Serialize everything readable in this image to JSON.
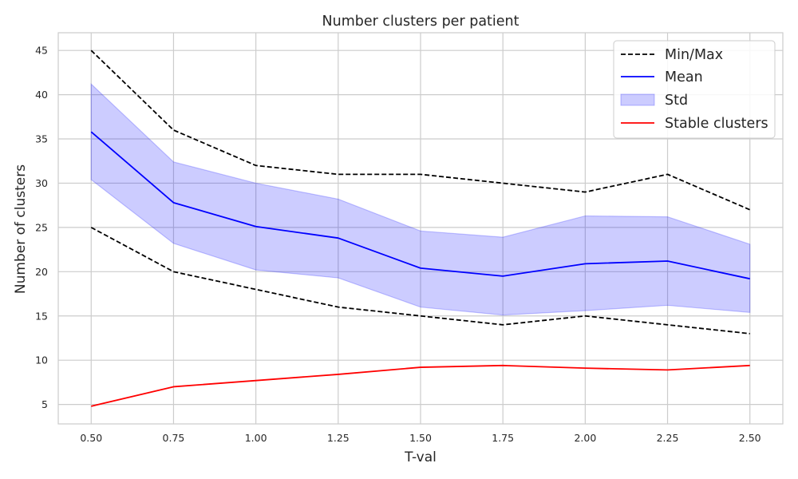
{
  "chart_data": {
    "type": "line",
    "title": "Number clusters per patient",
    "xlabel": "T-val",
    "ylabel": "Number of clusters",
    "x": [
      0.5,
      0.75,
      1.0,
      1.25,
      1.5,
      1.75,
      2.0,
      2.25,
      2.5
    ],
    "x_tick_labels": [
      "0.50",
      "0.75",
      "1.00",
      "1.25",
      "1.50",
      "1.75",
      "2.00",
      "2.25",
      "2.50"
    ],
    "y_ticks": [
      5,
      10,
      15,
      20,
      25,
      30,
      35,
      40,
      45
    ],
    "y_tick_labels": [
      "5",
      "10",
      "15",
      "20",
      "25",
      "30",
      "35",
      "40",
      "45"
    ],
    "xlim": [
      0.4,
      2.6
    ],
    "ylim": [
      2.8,
      47.0
    ],
    "grid": true,
    "legend_position": "top-right",
    "series": [
      {
        "name": "Min/Max",
        "style": "dashed",
        "color": "#000000",
        "values": [
          45,
          36,
          32,
          31,
          31,
          30,
          29,
          31,
          27
        ]
      },
      {
        "name": "Min/Max",
        "style": "dashed",
        "color": "#000000",
        "values": [
          25,
          20,
          18,
          16,
          15,
          14,
          15,
          14,
          13
        ],
        "in_legend": false
      },
      {
        "name": "Mean",
        "style": "solid",
        "color": "#0000ff",
        "values": [
          35.8,
          27.8,
          25.1,
          23.8,
          20.4,
          19.5,
          20.9,
          21.2,
          19.2
        ]
      },
      {
        "name": "Std",
        "style": "band",
        "color": "#0000ff",
        "lower": [
          30.4,
          23.2,
          20.2,
          19.3,
          16.0,
          15.1,
          15.6,
          16.2,
          15.4
        ],
        "upper": [
          41.2,
          32.4,
          30.0,
          28.2,
          24.6,
          23.9,
          26.3,
          26.2,
          23.1
        ]
      },
      {
        "name": "Stable clusters",
        "style": "solid",
        "color": "#ff0000",
        "values": [
          4.8,
          7.0,
          7.7,
          8.4,
          9.2,
          9.4,
          9.1,
          8.9,
          9.4
        ]
      }
    ],
    "legend": [
      "Min/Max",
      "Mean",
      "Std",
      "Stable clusters"
    ]
  }
}
